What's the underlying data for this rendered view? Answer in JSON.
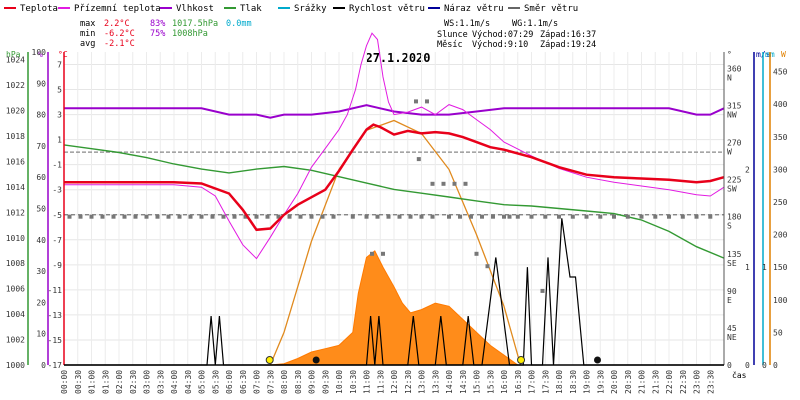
{
  "chart_data": {
    "type": "line",
    "title": "27.1.2020",
    "legend": [
      {
        "name": "Teplota",
        "color": "#e8001a"
      },
      {
        "name": "Přízemní teplota",
        "color": "#e21be2"
      },
      {
        "name": "Vlhkost",
        "color": "#9900cc"
      },
      {
        "name": "Tlak",
        "color": "#339933"
      },
      {
        "name": "Srážky",
        "color": "#00aacc"
      },
      {
        "name": "Rychlost větru",
        "color": "#000000"
      },
      {
        "name": "Náraz větru",
        "color": "#000099"
      },
      {
        "name": "Směr větru",
        "color": "#666666"
      }
    ],
    "stats": {
      "max_label": "max",
      "min_label": "min",
      "avg_label": "avg",
      "max_temp": "2.2°C",
      "max_hum": "83%",
      "max_press": "1017.5hPa",
      "max_rain": "0.0mm",
      "min_temp": "-6.2°C",
      "min_hum": "75%",
      "min_press": "1008hPa",
      "avg_temp": "-2.1°C",
      "ws": "WS:1.1m/s",
      "wg": "WG:1.1m/s",
      "sun": "Slunce",
      "moon": "Měsíc",
      "sun_rise": "Východ:07:29",
      "sun_set": "Západ:16:37",
      "moon_rise": "Východ:9:10",
      "moon_set": "Západ:19:24"
    },
    "axis_units": {
      "press": "hPa",
      "hum": "%",
      "temp": "°C",
      "dir": "°",
      "wind": "m/s",
      "rain": "mm",
      "solar": "W",
      "time": "čas"
    },
    "time_ticks": [
      "00:00",
      "00:30",
      "01:00",
      "01:30",
      "02:00",
      "02:30",
      "03:00",
      "03:30",
      "04:00",
      "04:30",
      "05:00",
      "05:30",
      "06:00",
      "06:30",
      "07:00",
      "07:30",
      "08:00",
      "08:30",
      "09:00",
      "09:30",
      "10:00",
      "10:30",
      "11:00",
      "11:30",
      "12:00",
      "12:30",
      "13:00",
      "13:30",
      "14:00",
      "14:30",
      "15:00",
      "15:30",
      "16:00",
      "16:30",
      "17:00",
      "17:30",
      "18:00",
      "18:30",
      "19:00",
      "19:30",
      "20:00",
      "20:30",
      "21:00",
      "21:30",
      "22:00",
      "22:30",
      "23:00",
      "23:30"
    ],
    "pressure_ticks": [
      "1024",
      "1022",
      "1020",
      "1018",
      "1016",
      "1014",
      "1012",
      "1010",
      "1008",
      "1006",
      "1004",
      "1002",
      "1000"
    ],
    "humidity_ticks": [
      "100",
      "90",
      "80",
      "70",
      "60",
      "50",
      "40",
      "30",
      "20",
      "10",
      "0"
    ],
    "temp_ticks": [
      "7",
      "5",
      "3",
      "1",
      "-1",
      "-3",
      "-5",
      "-7",
      "-9",
      "-11",
      "-13",
      "-15",
      "-17"
    ],
    "dir_ticks": [
      "360",
      "315",
      "270",
      "225",
      "180",
      "135",
      "90",
      "45",
      "0"
    ],
    "dir_labels": [
      "N",
      "NW",
      "W",
      "SW",
      "S",
      "SE",
      "E",
      "NE"
    ],
    "wind_ticks": [
      "2",
      "1",
      "0"
    ],
    "rain_ticks": [
      "1",
      "0"
    ],
    "solar_ticks": [
      "450",
      "400",
      "350",
      "300",
      "250",
      "200",
      "150",
      "100",
      "50",
      "0"
    ],
    "ranges": {
      "temp": [
        -17,
        8
      ],
      "humidity": [
        0,
        100
      ],
      "pressure": [
        1000,
        1024.6
      ],
      "solar": [
        0,
        480
      ],
      "wind": [
        0,
        3.2
      ],
      "direction": [
        0,
        380
      ]
    },
    "x_range_hours": [
      0,
      24
    ],
    "temperature": {
      "x": [
        0,
        1,
        2,
        3,
        4,
        5,
        6,
        6.5,
        7,
        7.5,
        8,
        8.5,
        9,
        9.5,
        10,
        10.5,
        11,
        11.25,
        11.5,
        12,
        12.5,
        13,
        13.5,
        14,
        14.5,
        15,
        15.5,
        16,
        17,
        18,
        19,
        20,
        21,
        22,
        23,
        23.5,
        24
      ],
      "y": [
        -2.4,
        -2.4,
        -2.4,
        -2.4,
        -2.4,
        -2.5,
        -3.3,
        -4.6,
        -6.2,
        -6.1,
        -5.0,
        -4.2,
        -3.6,
        -3.0,
        -1.5,
        0.2,
        1.8,
        2.2,
        2.0,
        1.4,
        1.7,
        1.5,
        1.6,
        1.5,
        1.2,
        0.8,
        0.4,
        0.2,
        -0.4,
        -1.2,
        -1.8,
        -2.0,
        -2.1,
        -2.2,
        -2.4,
        -2.3,
        -2.0
      ]
    },
    "ground_temperature": {
      "x": [
        0,
        1,
        2,
        3,
        4,
        5,
        5.5,
        6,
        6.5,
        7,
        7.5,
        8,
        8.5,
        9,
        9.5,
        10,
        10.3,
        10.6,
        10.8,
        11,
        11.2,
        11.4,
        11.6,
        11.8,
        12,
        12.5,
        13,
        13.5,
        14,
        14.5,
        15,
        15.5,
        16,
        17,
        18,
        19,
        20,
        21,
        22,
        23,
        23.5,
        24
      ],
      "y": [
        -2.6,
        -2.6,
        -2.6,
        -2.6,
        -2.6,
        -2.8,
        -3.5,
        -5.5,
        -7.4,
        -8.5,
        -6.8,
        -5.0,
        -3.3,
        -1.2,
        0.3,
        1.8,
        3.0,
        5.0,
        7.0,
        8.5,
        9.5,
        9.0,
        6.0,
        4.0,
        3.0,
        3.2,
        3.6,
        3.0,
        3.8,
        3.4,
        2.6,
        1.8,
        0.8,
        -0.3,
        -1.3,
        -2.0,
        -2.4,
        -2.7,
        -3.0,
        -3.4,
        -3.5,
        -2.8
      ]
    },
    "humidity": {
      "x": [
        0,
        4.5,
        5,
        6,
        7,
        7.5,
        8,
        9,
        10,
        11,
        12,
        13,
        14,
        15,
        16,
        17,
        18,
        19,
        20,
        21,
        22,
        23,
        23.5,
        24
      ],
      "y": [
        82,
        82,
        82,
        80,
        80,
        79,
        80,
        80,
        81,
        83,
        81,
        80,
        80,
        81,
        82,
        82,
        82,
        82,
        82,
        82,
        82,
        80,
        80,
        82
      ]
    },
    "pressure": {
      "x": [
        0,
        1,
        2,
        3,
        4,
        5,
        6,
        7,
        8,
        9,
        10,
        11,
        12,
        13,
        14,
        15,
        16,
        17,
        18,
        19,
        20,
        21,
        22,
        23,
        24
      ],
      "y": [
        1017.3,
        1017.0,
        1016.7,
        1016.3,
        1015.8,
        1015.4,
        1015.1,
        1015.4,
        1015.6,
        1015.3,
        1014.8,
        1014.3,
        1013.8,
        1013.5,
        1013.2,
        1012.9,
        1012.6,
        1012.5,
        1012.3,
        1012.1,
        1011.9,
        1011.4,
        1010.5,
        1009.3,
        1008.4
      ]
    },
    "solar_curve": {
      "x": [
        7.5,
        8,
        9,
        10,
        11,
        12,
        13,
        14,
        15,
        16,
        16.6
      ],
      "y": [
        0,
        50,
        190,
        300,
        360,
        375,
        355,
        300,
        200,
        90,
        0
      ]
    },
    "solar_measured": {
      "x": [
        7.5,
        8,
        8.5,
        9,
        9.5,
        10,
        10.5,
        10.7,
        11,
        11.3,
        11.6,
        12,
        12.3,
        12.6,
        13,
        13.5,
        14,
        14.5,
        15,
        15.5,
        16,
        16.5
      ],
      "y": [
        0,
        2,
        10,
        20,
        25,
        30,
        50,
        110,
        165,
        175,
        150,
        120,
        95,
        80,
        85,
        95,
        90,
        70,
        50,
        30,
        15,
        0
      ]
    },
    "wind_speed": {
      "x": [
        0,
        5.2,
        5.35,
        5.5,
        5.65,
        5.8,
        11.0,
        11.15,
        11.3,
        11.45,
        11.6,
        12.5,
        12.7,
        12.9,
        13.5,
        13.7,
        13.9,
        14.5,
        14.7,
        14.9,
        15.2,
        15.7,
        16.2,
        16.7,
        16.85,
        17,
        17.4,
        17.6,
        17.8,
        18.1,
        18.4,
        18.6,
        18.9,
        19.1,
        24
      ],
      "y": [
        0,
        0,
        0.5,
        0,
        0.5,
        0,
        0,
        0.5,
        0,
        0.5,
        0,
        0,
        0.5,
        0,
        0,
        0.5,
        0,
        0,
        0.5,
        0,
        0,
        1.1,
        0,
        0,
        1.0,
        0,
        0,
        1.1,
        0,
        1.5,
        0.9,
        0.9,
        0,
        0,
        0
      ]
    },
    "wind_dir_dots": {
      "x": [
        0.2,
        0.6,
        1.0,
        1.4,
        1.8,
        2.2,
        2.6,
        3.0,
        3.4,
        3.8,
        4.2,
        4.6,
        5.0,
        5.4,
        5.8,
        6.2,
        6.6,
        7.0,
        7.4,
        7.8,
        8.2,
        8.6,
        9.0,
        9.4,
        9.8,
        10.5,
        11.0,
        11.4,
        11.8,
        12.2,
        12.6,
        13.0,
        13.4,
        14.0,
        14.4,
        14.8,
        15.2,
        15.6,
        16.0,
        16.5,
        17.0,
        17.5,
        18.0,
        18.5,
        19.0,
        19.5,
        20.0,
        20.5,
        21.0,
        21.5,
        22.0,
        22.5,
        23.0,
        23.5,
        12.8,
        13.2,
        12.9,
        13.4,
        13.8,
        14.2,
        14.6,
        11.2,
        11.6,
        15.0,
        15.4,
        16.2,
        17.4
      ],
      "y": [
        180,
        180,
        180,
        180,
        180,
        180,
        180,
        180,
        180,
        180,
        180,
        180,
        180,
        180,
        180,
        180,
        180,
        180,
        180,
        180,
        180,
        180,
        180,
        180,
        180,
        180,
        180,
        180,
        180,
        180,
        180,
        180,
        180,
        180,
        180,
        180,
        180,
        180,
        180,
        180,
        180,
        180,
        180,
        180,
        180,
        180,
        180,
        180,
        180,
        180,
        180,
        180,
        180,
        180,
        320,
        320,
        250,
        220,
        220,
        220,
        220,
        135,
        135,
        135,
        120,
        180,
        90
      ]
    }
  }
}
